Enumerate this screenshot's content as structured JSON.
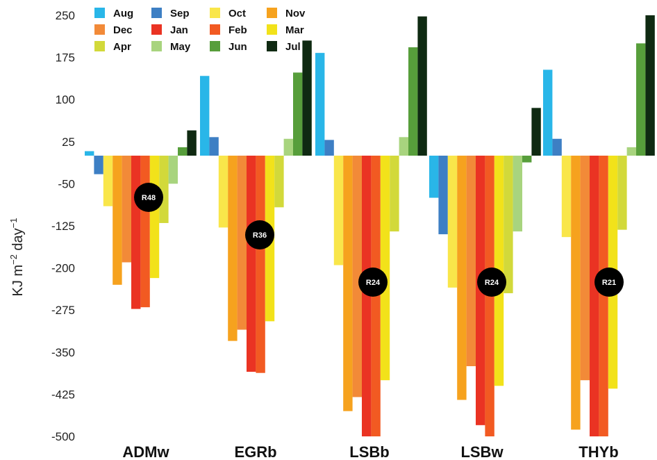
{
  "chart_data": {
    "type": "bar",
    "ylabel": "KJ m",
    "ylabel_sup1": "−2",
    "ylabel_mid": " day",
    "ylabel_sup2": "−1",
    "ylim": [
      -500,
      250
    ],
    "yticks": [
      250,
      175,
      100,
      25,
      -50,
      -125,
      -200,
      -275,
      -350,
      -425,
      -500
    ],
    "legend_position": "top-left",
    "categories": [
      "ADMw",
      "EGRb",
      "LSBb",
      "LSBw",
      "THYb"
    ],
    "badges": [
      "R48",
      "R36",
      "R24",
      "R24",
      "R21"
    ],
    "series": [
      {
        "name": "Aug",
        "color": "#29b6e8",
        "values": [
          8,
          142,
          183,
          -75,
          153
        ]
      },
      {
        "name": "Sep",
        "color": "#3d7fc4",
        "values": [
          -33,
          33,
          28,
          -140,
          30
        ]
      },
      {
        "name": "Oct",
        "color": "#f9e64a",
        "values": [
          -90,
          -128,
          -195,
          -235,
          -145
        ]
      },
      {
        "name": "Nov",
        "color": "#f6a21e",
        "values": [
          -230,
          -330,
          -455,
          -435,
          -488
        ]
      },
      {
        "name": "Dec",
        "color": "#f28a38",
        "values": [
          -190,
          -310,
          -430,
          -375,
          -400
        ]
      },
      {
        "name": "Jan",
        "color": "#ea3323",
        "values": [
          -273,
          -385,
          -500,
          -480,
          -500
        ]
      },
      {
        "name": "Feb",
        "color": "#f25a22",
        "values": [
          -270,
          -387,
          -500,
          -500,
          -500
        ]
      },
      {
        "name": "Mar",
        "color": "#f2e21a",
        "values": [
          -218,
          -295,
          -400,
          -410,
          -415
        ]
      },
      {
        "name": "Apr",
        "color": "#d2d93a",
        "values": [
          -120,
          -92,
          -135,
          -245,
          -132
        ]
      },
      {
        "name": "May",
        "color": "#a8d47e",
        "values": [
          -50,
          30,
          33,
          -135,
          15
        ]
      },
      {
        "name": "Jun",
        "color": "#579e3b",
        "values": [
          15,
          148,
          193,
          -12,
          200
        ]
      },
      {
        "name": "Jul",
        "color": "#0f2a12",
        "values": [
          45,
          205,
          248,
          85,
          250
        ]
      }
    ]
  }
}
